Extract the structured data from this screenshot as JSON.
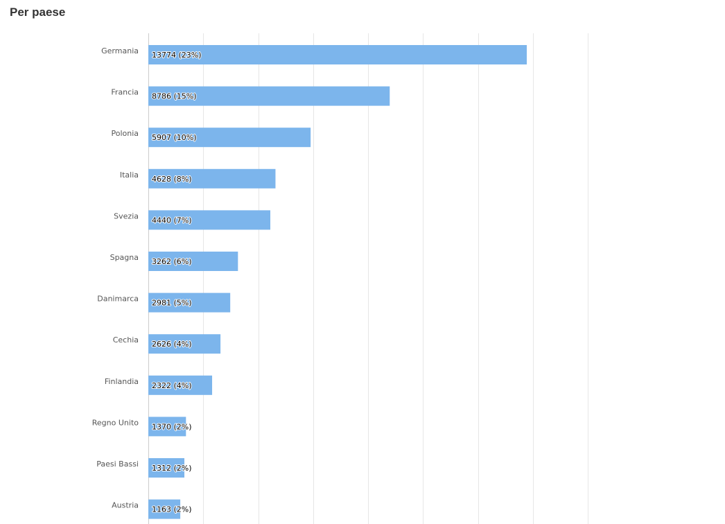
{
  "title": "Per paese",
  "chart_data": {
    "type": "bar",
    "orientation": "horizontal",
    "categories": [
      "Germania",
      "Francia",
      "Polonia",
      "Italia",
      "Svezia",
      "Spagna",
      "Danimarca",
      "Cechia",
      "Finlandia",
      "Regno Unito",
      "Paesi Bassi",
      "Austria"
    ],
    "values": [
      13774,
      8786,
      5907,
      4628,
      4440,
      3262,
      2981,
      2626,
      2322,
      1370,
      1312,
      1163
    ],
    "data_labels": [
      "13774 (23%)",
      "8786 (15%)",
      "5907 (10%)",
      "4628 (8%)",
      "4440 (7%)",
      "3262 (6%)",
      "2981 (5%)",
      "2626 (4%)",
      "2322 (4%)",
      "1370 (2%)",
      "1312 (2%)",
      "1163 (2%)"
    ],
    "xlim": [
      0,
      16000
    ],
    "grid": true,
    "bar_color": "#7cb5ec"
  }
}
